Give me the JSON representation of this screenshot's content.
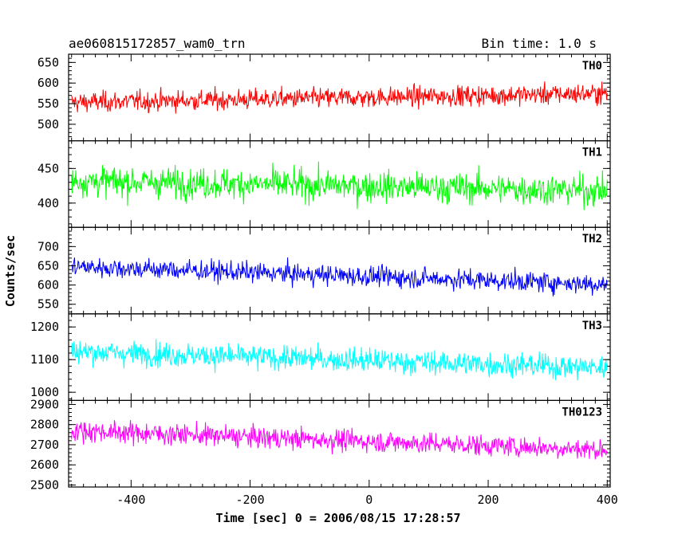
{
  "header": {
    "title": "ae060815172857_wam0_trn",
    "bin_time": "Bin time: 1.0 s"
  },
  "chart_data": {
    "type": "line",
    "xlabel": "Time [sec] 0 = 2006/08/15 17:28:57",
    "ylabel": "Counts/sec",
    "xlim": [
      -505,
      405
    ],
    "x_ticks": [
      -400,
      -200,
      0,
      200,
      400
    ],
    "grid": false,
    "panels": [
      {
        "name": "TH0",
        "color": "#ff0000",
        "ylim": [
          460,
          670
        ],
        "y_ticks": [
          500,
          550,
          600,
          650
        ],
        "mean_start": 553,
        "mean_end": 575,
        "noise": 28
      },
      {
        "name": "TH1",
        "color": "#00ff00",
        "ylim": [
          365,
          490
        ],
        "y_ticks": [
          400,
          450
        ],
        "mean_start": 432,
        "mean_end": 418,
        "noise": 25
      },
      {
        "name": "TH2",
        "color": "#0000ff",
        "ylim": [
          525,
          750
        ],
        "y_ticks": [
          550,
          600,
          650,
          700
        ],
        "mean_start": 648,
        "mean_end": 602,
        "noise": 30
      },
      {
        "name": "TH3",
        "color": "#00ffff",
        "ylim": [
          975,
          1240
        ],
        "y_ticks": [
          1000,
          1100,
          1200
        ],
        "mean_start": 1125,
        "mean_end": 1075,
        "noise": 42
      },
      {
        "name": "TH0123",
        "color": "#ff00ff",
        "ylim": [
          2490,
          2920
        ],
        "y_ticks": [
          2500,
          2600,
          2700,
          2800,
          2900
        ],
        "mean_start": 2770,
        "mean_end": 2675,
        "noise": 60
      }
    ]
  }
}
